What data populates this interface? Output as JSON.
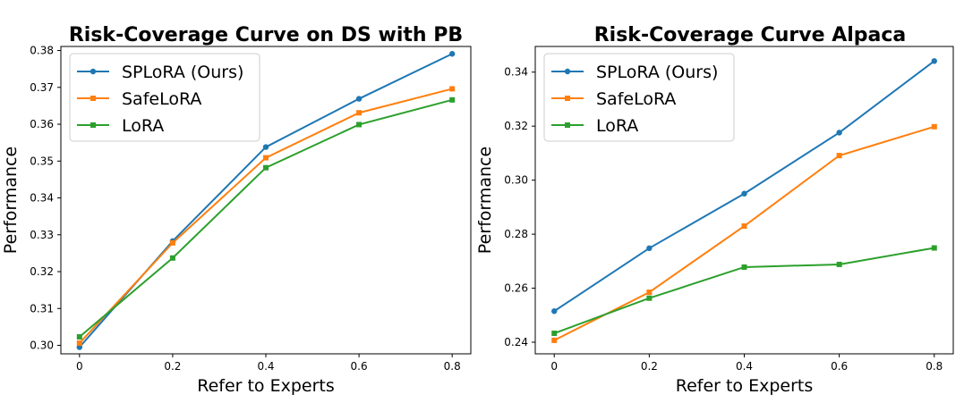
{
  "chart_data": [
    {
      "type": "line",
      "title": "Risk-Coverage Curve on DS with PB",
      "xlabel": "Refer to Experts",
      "ylabel": "Performance",
      "x": [
        0,
        0.2,
        0.4,
        0.6,
        0.8
      ],
      "x_ticks": [
        "0",
        "0.2",
        "0.4",
        "0.6",
        "0.8"
      ],
      "xlim": [
        -0.04,
        0.84
      ],
      "ylim": [
        0.2977,
        0.3811
      ],
      "y_ticks": [
        "0.30",
        "0.31",
        "0.32",
        "0.33",
        "0.34",
        "0.35",
        "0.36",
        "0.37",
        "0.38"
      ],
      "grid": false,
      "legend_position": "top-left",
      "series": [
        {
          "name": "SPLoRA (Ours)",
          "color": "#1f77b4",
          "marker": "circle",
          "values": [
            0.2995,
            0.3283,
            0.3538,
            0.3669,
            0.3791
          ]
        },
        {
          "name": "SafeLoRA",
          "color": "#ff7f0e",
          "marker": "square",
          "values": [
            0.3006,
            0.3278,
            0.3509,
            0.3631,
            0.3696
          ]
        },
        {
          "name": "LoRA",
          "color": "#2ca02c",
          "marker": "square",
          "values": [
            0.3023,
            0.3237,
            0.3482,
            0.3599,
            0.3666
          ]
        }
      ]
    },
    {
      "type": "line",
      "title": "Risk-Coverage Curve Alpaca",
      "xlabel": "Refer to Experts",
      "ylabel": "Performance",
      "x": [
        0,
        0.2,
        0.4,
        0.6,
        0.8
      ],
      "x_ticks": [
        "0",
        "0.2",
        "0.4",
        "0.6",
        "0.8"
      ],
      "xlim": [
        -0.04,
        0.84
      ],
      "ylim": [
        0.2357,
        0.3495
      ],
      "y_ticks": [
        "0.24",
        "0.26",
        "0.28",
        "0.30",
        "0.32",
        "0.34"
      ],
      "grid": false,
      "legend_position": "top-left",
      "series": [
        {
          "name": "SPLoRA (Ours)",
          "color": "#1f77b4",
          "marker": "circle",
          "values": [
            0.2515,
            0.2748,
            0.295,
            0.3176,
            0.3441
          ]
        },
        {
          "name": "SafeLoRA",
          "color": "#ff7f0e",
          "marker": "square",
          "values": [
            0.2407,
            0.2585,
            0.283,
            0.3091,
            0.3198
          ]
        },
        {
          "name": "LoRA",
          "color": "#2ca02c",
          "marker": "square",
          "values": [
            0.2433,
            0.2563,
            0.2678,
            0.2688,
            0.2749
          ]
        }
      ]
    }
  ]
}
